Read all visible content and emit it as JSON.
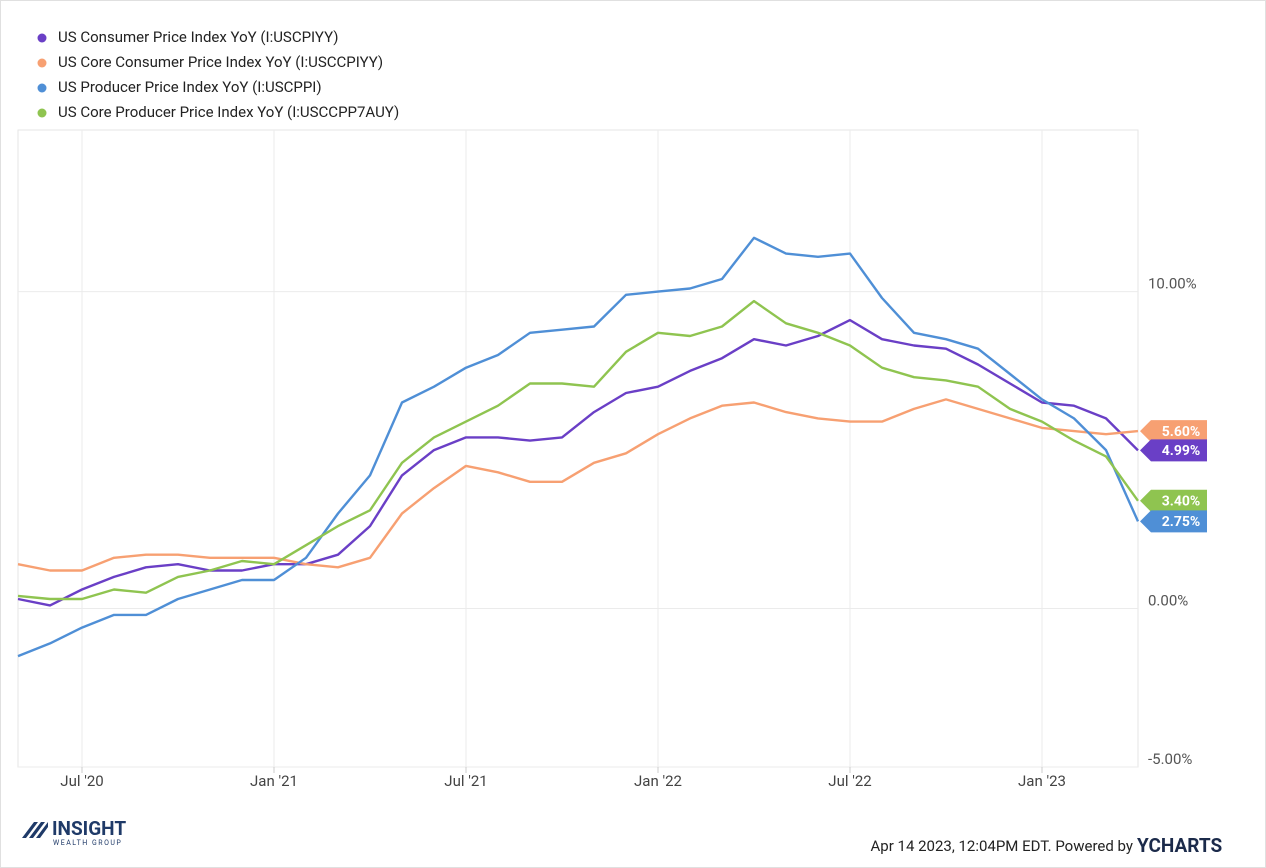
{
  "chart_data": {
    "type": "line",
    "x": [
      "2020-04",
      "2020-05",
      "2020-06",
      "2020-07",
      "2020-08",
      "2020-09",
      "2020-10",
      "2020-11",
      "2020-12",
      "2021-01",
      "2021-02",
      "2021-03",
      "2021-04",
      "2021-05",
      "2021-06",
      "2021-07",
      "2021-08",
      "2021-09",
      "2021-10",
      "2021-11",
      "2021-12",
      "2022-01",
      "2022-02",
      "2022-03",
      "2022-04",
      "2022-05",
      "2022-06",
      "2022-07",
      "2022-08",
      "2022-09",
      "2022-10",
      "2022-11",
      "2022-12",
      "2023-01",
      "2023-02",
      "2023-03"
    ],
    "series": [
      {
        "name": "US Consumer Price Index YoY (I:USCPIYY)",
        "color": "#6a3fc6",
        "values": [
          0.3,
          0.1,
          0.6,
          1.0,
          1.3,
          1.4,
          1.2,
          1.2,
          1.4,
          1.4,
          1.7,
          2.6,
          4.2,
          5.0,
          5.4,
          5.4,
          5.3,
          5.4,
          6.2,
          6.8,
          7.0,
          7.5,
          7.9,
          8.5,
          8.3,
          8.6,
          9.1,
          8.5,
          8.3,
          8.2,
          7.7,
          7.1,
          6.5,
          6.4,
          6.0,
          4.99
        ],
        "value_labels": [
          null,
          null,
          null,
          null,
          null,
          null,
          null,
          null,
          null,
          null,
          null,
          null,
          null,
          null,
          null,
          null,
          null,
          null,
          null,
          null,
          null,
          null,
          null,
          null,
          null,
          null,
          null,
          null,
          null,
          null,
          null,
          null,
          null,
          null,
          null,
          "4.99%"
        ]
      },
      {
        "name": "US Core Consumer Price Index YoY (I:USCCPIYY)",
        "color": "#f7a072",
        "values": [
          1.4,
          1.2,
          1.2,
          1.6,
          1.7,
          1.7,
          1.6,
          1.6,
          1.6,
          1.4,
          1.3,
          1.6,
          3.0,
          3.8,
          4.5,
          4.3,
          4.0,
          4.0,
          4.6,
          4.9,
          5.5,
          6.0,
          6.4,
          6.5,
          6.2,
          6.0,
          5.9,
          5.9,
          6.3,
          6.6,
          6.3,
          6.0,
          5.7,
          5.6,
          5.5,
          5.6
        ],
        "value_labels": [
          null,
          null,
          null,
          null,
          null,
          null,
          null,
          null,
          null,
          null,
          null,
          null,
          null,
          null,
          null,
          null,
          null,
          null,
          null,
          null,
          null,
          null,
          null,
          null,
          null,
          null,
          null,
          null,
          null,
          null,
          null,
          null,
          null,
          null,
          null,
          "5.60%"
        ]
      },
      {
        "name": "US Producer Price Index YoY (I:USCPPI)",
        "color": "#4f8fd6",
        "values": [
          -1.5,
          -1.1,
          -0.6,
          -0.2,
          -0.2,
          0.3,
          0.6,
          0.9,
          0.9,
          1.6,
          3.0,
          4.2,
          6.5,
          7.0,
          7.6,
          8.0,
          8.7,
          8.8,
          8.9,
          9.9,
          10.0,
          10.1,
          10.4,
          11.7,
          11.2,
          11.1,
          11.2,
          9.8,
          8.7,
          8.5,
          8.2,
          7.4,
          6.6,
          6.0,
          5.0,
          2.75
        ],
        "value_labels": [
          null,
          null,
          null,
          null,
          null,
          null,
          null,
          null,
          null,
          null,
          null,
          null,
          null,
          null,
          null,
          null,
          null,
          null,
          null,
          null,
          null,
          null,
          null,
          null,
          null,
          null,
          null,
          null,
          null,
          null,
          null,
          null,
          null,
          null,
          null,
          "2.75%"
        ]
      },
      {
        "name": "US Core Producer Price Index YoY (I:USCCPP7AUY)",
        "color": "#8fc450",
        "values": [
          0.4,
          0.3,
          0.3,
          0.6,
          0.5,
          1.0,
          1.2,
          1.5,
          1.4,
          2.0,
          2.6,
          3.1,
          4.6,
          5.4,
          5.9,
          6.4,
          7.1,
          7.1,
          7.0,
          8.1,
          8.7,
          8.6,
          8.9,
          9.7,
          9.0,
          8.7,
          8.3,
          7.6,
          7.3,
          7.2,
          7.0,
          6.3,
          5.9,
          5.3,
          4.8,
          3.4
        ],
        "value_labels": [
          null,
          null,
          null,
          null,
          null,
          null,
          null,
          null,
          null,
          null,
          null,
          null,
          null,
          null,
          null,
          null,
          null,
          null,
          null,
          null,
          null,
          null,
          null,
          null,
          null,
          null,
          null,
          null,
          null,
          null,
          null,
          null,
          null,
          null,
          null,
          "3.40%"
        ]
      }
    ],
    "xlim": [
      "2020-04",
      "2023-03"
    ],
    "xticks": [
      {
        "value": "2020-07-01",
        "label": "Jul '20"
      },
      {
        "value": "2021-01-01",
        "label": "Jan '21"
      },
      {
        "value": "2021-07-01",
        "label": "Jul '21"
      },
      {
        "value": "2022-01-01",
        "label": "Jan '22"
      },
      {
        "value": "2022-07-01",
        "label": "Jul '22"
      },
      {
        "value": "2023-01-01",
        "label": "Jan '23"
      }
    ],
    "ylim": [
      -5,
      15.1
    ],
    "yticks": [
      {
        "value": 10,
        "label": "10.00%"
      },
      {
        "value": 0,
        "label": "0.00%"
      },
      {
        "value": -5,
        "label": "-5.00%"
      }
    ],
    "grid": true,
    "legend": "top-left"
  },
  "footer": {
    "timestamp": "Apr 14 2023, 12:04PM EDT. Powered by",
    "brand": "YCHARTS",
    "logo_main": "INSIGHT",
    "logo_sub": "WEALTH GROUP"
  }
}
